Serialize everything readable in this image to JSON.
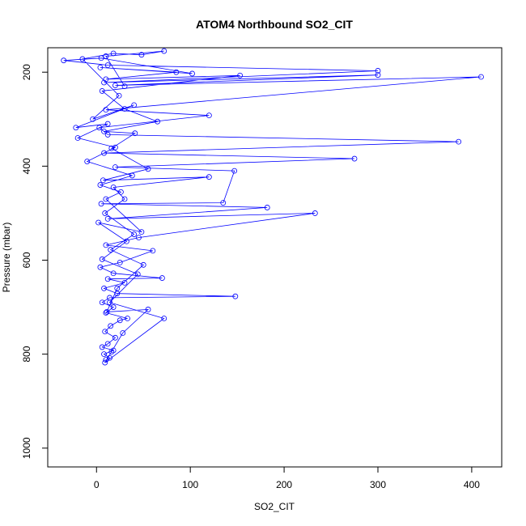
{
  "chart_data": {
    "type": "line",
    "title": "ATOM4 Northbound SO2_CIT",
    "xlabel": "SO2_CIT",
    "ylabel": "Pressure (mbar)",
    "xlim": [
      -52,
      432
    ],
    "ylim": [
      1040,
      148
    ],
    "y_reversed": true,
    "x_ticks": [
      0,
      100,
      200,
      300,
      400
    ],
    "y_ticks": [
      200,
      400,
      600,
      800,
      1000
    ],
    "series": [
      {
        "color": "#0000ff",
        "marker": "open-circle",
        "points": [
          {
            "x": 10,
            "y": 812
          },
          {
            "x": 14,
            "y": 808
          },
          {
            "x": 8,
            "y": 800
          },
          {
            "x": 18,
            "y": 792
          },
          {
            "x": 6,
            "y": 785
          },
          {
            "x": 12,
            "y": 778
          },
          {
            "x": 20,
            "y": 765
          },
          {
            "x": 9,
            "y": 752
          },
          {
            "x": 15,
            "y": 740
          },
          {
            "x": 25,
            "y": 728
          },
          {
            "x": 33,
            "y": 724
          },
          {
            "x": 10,
            "y": 712
          },
          {
            "x": 18,
            "y": 700
          },
          {
            "x": 6,
            "y": 690
          },
          {
            "x": 14,
            "y": 680
          },
          {
            "x": 148,
            "y": 677
          },
          {
            "x": 22,
            "y": 671
          },
          {
            "x": 8,
            "y": 660
          },
          {
            "x": 30,
            "y": 648
          },
          {
            "x": 12,
            "y": 640
          },
          {
            "x": 70,
            "y": 638
          },
          {
            "x": 18,
            "y": 628
          },
          {
            "x": 4,
            "y": 615
          },
          {
            "x": 25,
            "y": 605
          },
          {
            "x": 60,
            "y": 580
          },
          {
            "x": 10,
            "y": 568
          },
          {
            "x": 45,
            "y": 552
          },
          {
            "x": 233,
            "y": 500
          },
          {
            "x": 12,
            "y": 512
          },
          {
            "x": 182,
            "y": 488
          },
          {
            "x": 5,
            "y": 480
          },
          {
            "x": 135,
            "y": 478
          },
          {
            "x": 147,
            "y": 410
          },
          {
            "x": 20,
            "y": 402
          },
          {
            "x": 275,
            "y": 384
          },
          {
            "x": 8,
            "y": 372
          },
          {
            "x": 386,
            "y": 348
          },
          {
            "x": 12,
            "y": 333
          },
          {
            "x": 3,
            "y": 318
          },
          {
            "x": 120,
            "y": 292
          },
          {
            "x": 10,
            "y": 280
          },
          {
            "x": 410,
            "y": 210
          },
          {
            "x": 20,
            "y": 228
          },
          {
            "x": 300,
            "y": 206
          },
          {
            "x": 8,
            "y": 222
          },
          {
            "x": 300,
            "y": 197
          },
          {
            "x": 12,
            "y": 185
          },
          {
            "x": -35,
            "y": 175
          },
          {
            "x": 5,
            "y": 170
          },
          {
            "x": 102,
            "y": 203
          },
          {
            "x": 4,
            "y": 190
          },
          {
            "x": 85,
            "y": 200
          },
          {
            "x": 10,
            "y": 215
          },
          {
            "x": 153,
            "y": 207
          },
          {
            "x": 6,
            "y": 240
          },
          {
            "x": 30,
            "y": 278
          },
          {
            "x": 65,
            "y": 305
          },
          {
            "x": 8,
            "y": 326
          },
          {
            "x": 41,
            "y": 330
          },
          {
            "x": 16,
            "y": 362
          },
          {
            "x": 55,
            "y": 406
          },
          {
            "x": 7,
            "y": 430
          },
          {
            "x": 120,
            "y": 423
          },
          {
            "x": 18,
            "y": 445
          },
          {
            "x": 30,
            "y": 470
          },
          {
            "x": 9,
            "y": 500
          },
          {
            "x": 40,
            "y": 545
          },
          {
            "x": 15,
            "y": 578
          },
          {
            "x": 50,
            "y": 610
          },
          {
            "x": 22,
            "y": 660
          },
          {
            "x": 11,
            "y": 710
          },
          {
            "x": 55,
            "y": 705
          },
          {
            "x": 28,
            "y": 755
          },
          {
            "x": 16,
            "y": 795
          },
          {
            "x": 9,
            "y": 818
          },
          {
            "x": 72,
            "y": 724
          },
          {
            "x": 14,
            "y": 690
          },
          {
            "x": 44,
            "y": 630
          },
          {
            "x": 6,
            "y": 598
          },
          {
            "x": 32,
            "y": 560
          },
          {
            "x": 2,
            "y": 520
          },
          {
            "x": 48,
            "y": 540
          },
          {
            "x": 10,
            "y": 470
          },
          {
            "x": 26,
            "y": 455
          },
          {
            "x": 4,
            "y": 440
          },
          {
            "x": 38,
            "y": 420
          },
          {
            "x": -10,
            "y": 390
          },
          {
            "x": 20,
            "y": 360
          },
          {
            "x": -20,
            "y": 340
          },
          {
            "x": 12,
            "y": 310
          },
          {
            "x": -22,
            "y": 318
          },
          {
            "x": 40,
            "y": 270
          },
          {
            "x": -4,
            "y": 300
          },
          {
            "x": 24,
            "y": 250
          },
          {
            "x": -15,
            "y": 172
          },
          {
            "x": 18,
            "y": 160
          },
          {
            "x": 48,
            "y": 163
          },
          {
            "x": 72,
            "y": 155
          },
          {
            "x": 10,
            "y": 166
          },
          {
            "x": 30,
            "y": 230
          }
        ]
      }
    ]
  }
}
